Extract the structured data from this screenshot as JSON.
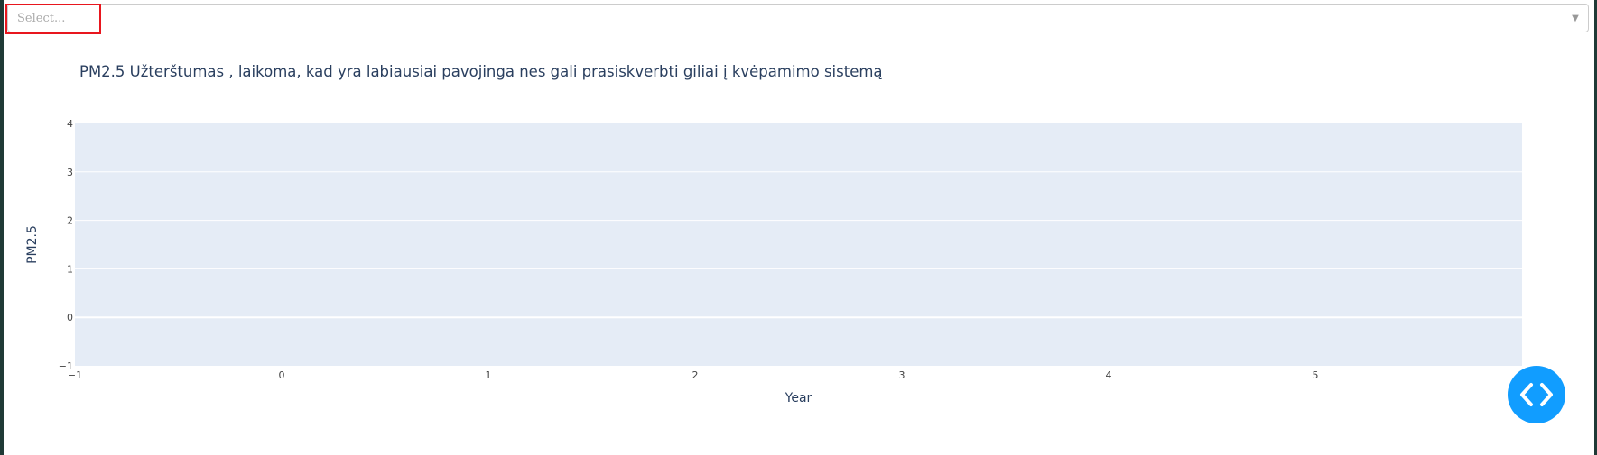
{
  "dropdown": {
    "placeholder": "Select..."
  },
  "chart_data": {
    "type": "line",
    "title": "PM2.5 Užterštumas  , laikoma, kad yra labiausiai pavojinga nes gali prasiskverbti giliai į kvėpamimo sistemą",
    "xlabel": "Year",
    "ylabel": "PM2.5",
    "xlim": [
      -1,
      6
    ],
    "ylim": [
      -1,
      4
    ],
    "x_ticks": [
      "−1",
      "0",
      "1",
      "2",
      "3",
      "4",
      "5",
      "6"
    ],
    "y_ticks": [
      "−1",
      "0",
      "1",
      "2",
      "3",
      "4"
    ],
    "series": [],
    "grid": true,
    "colors": {
      "plot_background": "#e5ecf6",
      "grid": "#ffffff",
      "text": "#2a3f5f",
      "accent": "#119dff",
      "highlight": "#e8161e"
    }
  },
  "code_button": {
    "icon": "code-icon"
  }
}
